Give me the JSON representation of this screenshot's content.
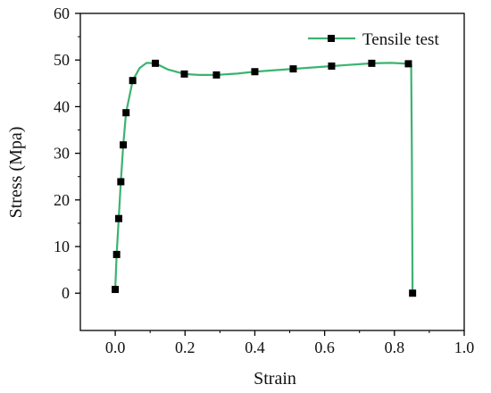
{
  "chart_data": {
    "type": "line",
    "title": "",
    "xlabel": "Strain",
    "ylabel": "Stress (Mpa)",
    "xlim": [
      -0.1,
      1.0
    ],
    "ylim": [
      -8,
      60
    ],
    "x_ticks": [
      0.0,
      0.2,
      0.4,
      0.6,
      0.8,
      1.0
    ],
    "x_tick_labels": [
      "0.0",
      "0.2",
      "0.4",
      "0.6",
      "0.8",
      "1.0"
    ],
    "y_ticks": [
      0,
      10,
      20,
      30,
      40,
      50,
      60
    ],
    "y_tick_labels": [
      "0",
      "10",
      "20",
      "30",
      "40",
      "50",
      "60"
    ],
    "grid": false,
    "legend_position": "top-right",
    "series": [
      {
        "name": "Tensile test",
        "color": "#3cb371",
        "marker_color": "#000000",
        "curve": [
          [
            0.0,
            0.8
          ],
          [
            0.004,
            8.3
          ],
          [
            0.01,
            16.0
          ],
          [
            0.016,
            23.9
          ],
          [
            0.023,
            31.8
          ],
          [
            0.031,
            38.7
          ],
          [
            0.05,
            45.6
          ],
          [
            0.07,
            48.3
          ],
          [
            0.09,
            49.4
          ],
          [
            0.115,
            49.3
          ],
          [
            0.15,
            48.0
          ],
          [
            0.198,
            47.0
          ],
          [
            0.24,
            46.8
          ],
          [
            0.29,
            46.8
          ],
          [
            0.35,
            47.1
          ],
          [
            0.4,
            47.5
          ],
          [
            0.51,
            48.1
          ],
          [
            0.62,
            48.7
          ],
          [
            0.735,
            49.3
          ],
          [
            0.79,
            49.4
          ],
          [
            0.84,
            49.2
          ],
          [
            0.848,
            49.0
          ],
          [
            0.85,
            30.0
          ],
          [
            0.852,
            0.0
          ]
        ],
        "markers": [
          [
            0.0,
            0.8
          ],
          [
            0.004,
            8.3
          ],
          [
            0.01,
            16.0
          ],
          [
            0.016,
            23.9
          ],
          [
            0.023,
            31.8
          ],
          [
            0.031,
            38.7
          ],
          [
            0.05,
            45.6
          ],
          [
            0.115,
            49.3
          ],
          [
            0.198,
            47.0
          ],
          [
            0.29,
            46.8
          ],
          [
            0.4,
            47.5
          ],
          [
            0.51,
            48.1
          ],
          [
            0.62,
            48.7
          ],
          [
            0.735,
            49.3
          ],
          [
            0.84,
            49.2
          ],
          [
            0.852,
            0.0
          ]
        ]
      }
    ]
  }
}
